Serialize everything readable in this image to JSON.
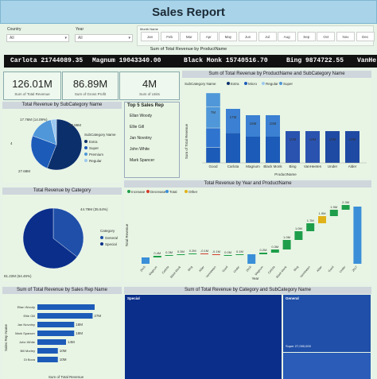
{
  "header": {
    "title": "Sales Report"
  },
  "slicers": {
    "country": {
      "label": "Country",
      "value": "All"
    },
    "year": {
      "label": "Year",
      "value": "All"
    },
    "month": {
      "label": "Month Name",
      "items": [
        "Jan",
        "Feb",
        "Mar",
        "Apr",
        "May",
        "Jun",
        "Jul",
        "Aug",
        "Sep",
        "Oct",
        "Nov",
        "Dec"
      ]
    }
  },
  "ticker": {
    "title": "Sum of Total Revenue by ProductName",
    "items": [
      "Carlota 21744089.35",
      "Magnum 19043340.00",
      "Black Monk 15740516.70",
      "Bing 9874722.55",
      "VanHe"
    ]
  },
  "kpis": [
    {
      "value": "126.01M",
      "label": "Sum of Total Revenue"
    },
    {
      "value": "86.89M",
      "label": "Sum of Gross Profit"
    },
    {
      "value": "4M",
      "label": "Sum of Units"
    }
  ],
  "top_reps": {
    "title": "Top 5 Sales Rep",
    "names": [
      "Ellan Woody",
      "Ellie Gill",
      "Jan Novotny",
      "John White",
      "Mark Spancer"
    ]
  },
  "colors": {
    "extra": "#0b2f6b",
    "super": "#1d5bb8",
    "premium": "#4f97d8",
    "regular": "#9cc8ef",
    "general": "#1f4fa8",
    "special": "#0a2e8a",
    "increase": "#1e9e4a",
    "decrease": "#d23c2c",
    "total": "#3a8fd8",
    "other": "#e0b21a"
  },
  "chart_data": [
    {
      "type": "pie",
      "title": "Total Revenue by SubCategory Name",
      "legend_title": "SubCategory Name",
      "categories": [
        "Extra",
        "Super",
        "Premium",
        "Regular"
      ],
      "values": [
        62.86,
        27.68,
        17.76,
        4
      ],
      "slice_labels": [
        "62.86M",
        "27.68M",
        "17.76M (14.09%)",
        "4"
      ]
    },
    {
      "type": "pie",
      "title": "Total Revenue by Category",
      "legend_title": "Category",
      "categories": [
        "General",
        "Special"
      ],
      "values": [
        44.79,
        81.22
      ],
      "slice_labels": [
        "44.79M (35.54%)",
        "81.22M (64.46%)"
      ]
    },
    {
      "type": "bar",
      "title": "Sum of Total Revenue by ProductName and SubCategory Name",
      "legend_title": "SubCategory Name",
      "legend": [
        "Extra",
        "Micro",
        "Regular",
        "Super"
      ],
      "categories": [
        "Good",
        "Carlota",
        "Magnum",
        "Black Monk",
        "Bing",
        "VanHeeten",
        "Under",
        "Alder"
      ],
      "values": [
        22,
        17,
        15,
        15,
        10,
        10,
        10,
        10
      ],
      "data_labels": [
        "",
        "17M",
        "15M",
        "15M",
        "10M",
        "10M",
        "10M",
        "10M"
      ],
      "top_labels": [
        "7M",
        "",
        "",
        "",
        "",
        "",
        "",
        ""
      ],
      "xlabel": "ProductName",
      "ylabel": "Sum of Total Revenue"
    },
    {
      "type": "waterfall",
      "title": "Total Revenue by Year and ProductName",
      "legend": [
        "Increase",
        "Decrease",
        "Total",
        "Other"
      ],
      "xlabel": "Year",
      "ylabel": "Total Revenue",
      "categories": [
        "2015",
        "Magnum",
        "Carlota",
        "Black Monk",
        "Bing",
        "Alder",
        "VanHeeten",
        "Good",
        "Under",
        "2016",
        "Magnum",
        "Carlota",
        "Black Monk",
        "Bing",
        "VanHeeten",
        "Alder",
        "Good",
        "Under",
        "2017"
      ],
      "labels": [
        "",
        "0.4M",
        "0.3M",
        "0.3M",
        "0.2M",
        "-0.1M",
        "-0.1M",
        "0.0M",
        "0.1M",
        "",
        "0.2M",
        "0.3M",
        "1.0M",
        "1.0M",
        "1.7M",
        "1.9M",
        "1.9M",
        "2.3M",
        ""
      ]
    },
    {
      "type": "bar",
      "orientation": "horizontal",
      "title": "Sum of Total Revenue by Sales Rep Name",
      "categories": [
        "Ellan Woody",
        "Ellie Gill",
        "Jan Novotny",
        "Mark Spancer",
        "John White",
        "Bill Morley",
        "Di Bova"
      ],
      "values": [
        28,
        27,
        18,
        18,
        14,
        10,
        10
      ],
      "data_labels": [
        "",
        "27M",
        "18M",
        "18M",
        "14M",
        "10M",
        "10M"
      ],
      "xlabel": "Sum of Total Revenue",
      "ylabel": "Sales Rep Name"
    },
    {
      "type": "treemap",
      "title": "Sum of Total Revenue by Category and SubCategory Name",
      "groups": [
        "Special",
        "General"
      ],
      "inner_label": "Super 27,000,000"
    }
  ]
}
